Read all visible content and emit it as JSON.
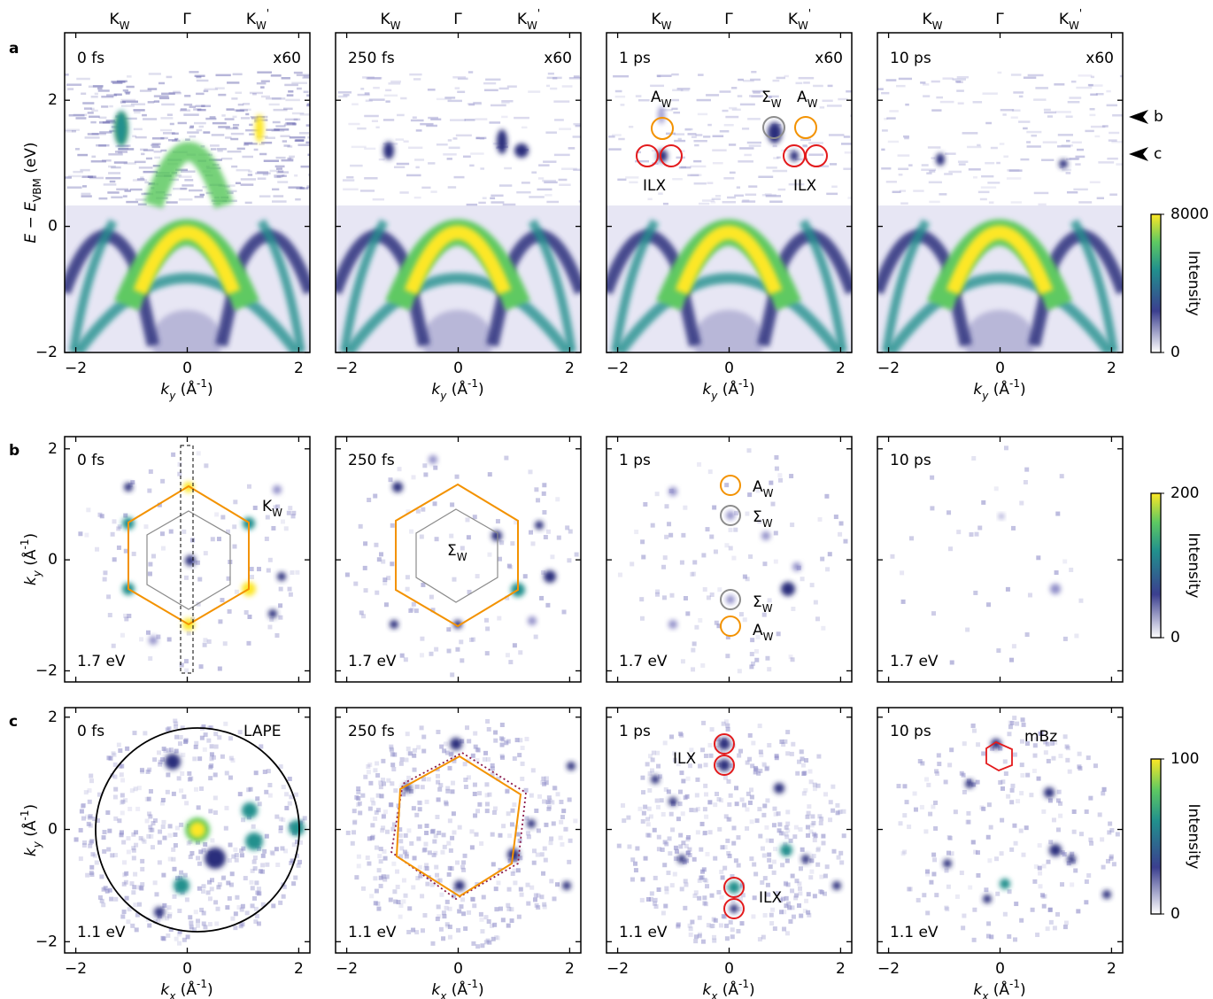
{
  "panel_letters": [
    "a",
    "b",
    "c"
  ],
  "times": [
    "0 fs",
    "250 fs",
    "1 ps",
    "10 ps"
  ],
  "scale_label": "x60",
  "energy_labels": {
    "b": "1.7 eV",
    "c": "1.1 eV"
  },
  "top_labels": [
    [
      {
        "t": "K"
      },
      {
        "t": "W",
        "f": "sub"
      }
    ],
    [
      {
        "t": "Γ"
      }
    ],
    [
      {
        "t": "K"
      },
      {
        "t": "W",
        "f": "sub"
      },
      {
        "t": "'",
        "f": "sup"
      }
    ]
  ],
  "axes": {
    "a": {
      "xlim": [
        -2.2,
        2.2
      ],
      "ylim": [
        -2,
        3.07
      ],
      "xticks": [
        {
          "value": -2,
          "label": "−2"
        },
        0,
        2
      ],
      "yticks": [
        {
          "value": -2,
          "label": "−2"
        },
        0,
        2
      ],
      "xlabel": [
        {
          "t": "k",
          "f": "italic"
        },
        {
          "t": "y",
          "f": "sub-italic"
        },
        {
          "t": " (Å"
        },
        {
          "t": "-1",
          "f": "sup"
        },
        {
          "t": ")"
        }
      ],
      "ylabel": [
        {
          "t": "E",
          "f": "italic"
        },
        {
          "t": " − "
        },
        {
          "t": "E",
          "f": "italic"
        },
        {
          "t": "VBM",
          "f": "sub"
        },
        {
          "t": " (eV)"
        }
      ]
    },
    "b": {
      "xlim": [
        -2.2,
        2.2
      ],
      "ylim": [
        -2.2,
        2.22
      ],
      "xticks": [
        {
          "value": -2,
          "label": "−2"
        },
        0,
        2
      ],
      "yticks": [
        {
          "value": -2,
          "label": "−2"
        },
        0,
        2
      ],
      "ylabel": [
        {
          "t": "k",
          "f": "italic"
        },
        {
          "t": "y",
          "f": "sub-italic"
        },
        {
          "t": " (Å"
        },
        {
          "t": "-1",
          "f": "sup"
        },
        {
          "t": ")"
        }
      ]
    },
    "c": {
      "xlim": [
        -2.2,
        2.2
      ],
      "ylim": [
        -2.2,
        2.17
      ],
      "xticks": [
        {
          "value": -2,
          "label": "−2"
        },
        0,
        2
      ],
      "yticks": [
        {
          "value": -2,
          "label": "−2"
        },
        0,
        2
      ],
      "xlabel": [
        {
          "t": "k",
          "f": "italic"
        },
        {
          "t": "x",
          "f": "sub-italic"
        },
        {
          "t": " (Å"
        },
        {
          "t": "-1",
          "f": "sup"
        },
        {
          "t": ")"
        }
      ],
      "ylabel": [
        {
          "t": "k",
          "f": "italic"
        },
        {
          "t": "y",
          "f": "sub-italic"
        },
        {
          "t": " (Å"
        },
        {
          "t": "-1",
          "f": "sup"
        },
        {
          "t": ")"
        }
      ]
    }
  },
  "colorbars": [
    {
      "label": "Intensity",
      "lim": [
        0,
        8000
      ],
      "ticks": [
        0,
        8000
      ]
    },
    {
      "label": "Intensity",
      "lim": [
        0,
        200
      ],
      "ticks": [
        0,
        200
      ]
    },
    {
      "label": "Intensity",
      "lim": [
        0,
        100
      ],
      "ticks": [
        0,
        100
      ]
    }
  ],
  "annotations": {
    "a": [
      [],
      [],
      [
        {
          "segs": [
            {
              "t": "A"
            },
            {
              "t": "W",
              "f": "sub"
            }
          ],
          "color": "#f39200"
        },
        {
          "segs": [
            {
              "t": "Σ"
            },
            {
              "t": "W",
              "f": "sub"
            }
          ],
          "color": "#8c8c8c"
        },
        {
          "segs": [
            {
              "t": "A"
            },
            {
              "t": "W",
              "f": "sub"
            }
          ],
          "color": "#f39200"
        },
        {
          "segs": [
            {
              "t": "ILX"
            }
          ],
          "color": "#e31a1c"
        },
        {
          "segs": [
            {
              "t": "ILX"
            }
          ],
          "color": "#e31a1c"
        }
      ],
      []
    ],
    "b": [
      [
        {
          "segs": [
            {
              "t": "K"
            },
            {
              "t": "W",
              "f": "sub"
            }
          ],
          "color": "#f39200"
        }
      ],
      [
        {
          "segs": [
            {
              "t": "Σ"
            },
            {
              "t": "W",
              "f": "sub"
            }
          ],
          "color": "#8c8c8c"
        }
      ],
      [
        {
          "segs": [
            {
              "t": "A"
            },
            {
              "t": "W",
              "f": "sub"
            }
          ],
          "color": "#f39200"
        },
        {
          "segs": [
            {
              "t": "Σ"
            },
            {
              "t": "W",
              "f": "sub"
            }
          ],
          "color": "#8c8c8c"
        },
        {
          "segs": [
            {
              "t": "Σ"
            },
            {
              "t": "W",
              "f": "sub"
            }
          ],
          "color": "#8c8c8c"
        },
        {
          "segs": [
            {
              "t": "A"
            },
            {
              "t": "W",
              "f": "sub"
            }
          ],
          "color": "#f39200"
        }
      ],
      []
    ],
    "c": [
      [
        {
          "segs": [
            {
              "t": "LAPE"
            }
          ],
          "color": "#000000"
        }
      ],
      [],
      [
        {
          "segs": [
            {
              "t": "ILX"
            }
          ],
          "color": "#e31a1c"
        },
        {
          "segs": [
            {
              "t": "ILX"
            }
          ],
          "color": "#e31a1c"
        }
      ],
      [
        {
          "segs": [
            {
              "t": "mBz"
            }
          ],
          "color": "#e31a1c"
        }
      ]
    ]
  },
  "arrow_labels": [
    "b",
    "c"
  ]
}
